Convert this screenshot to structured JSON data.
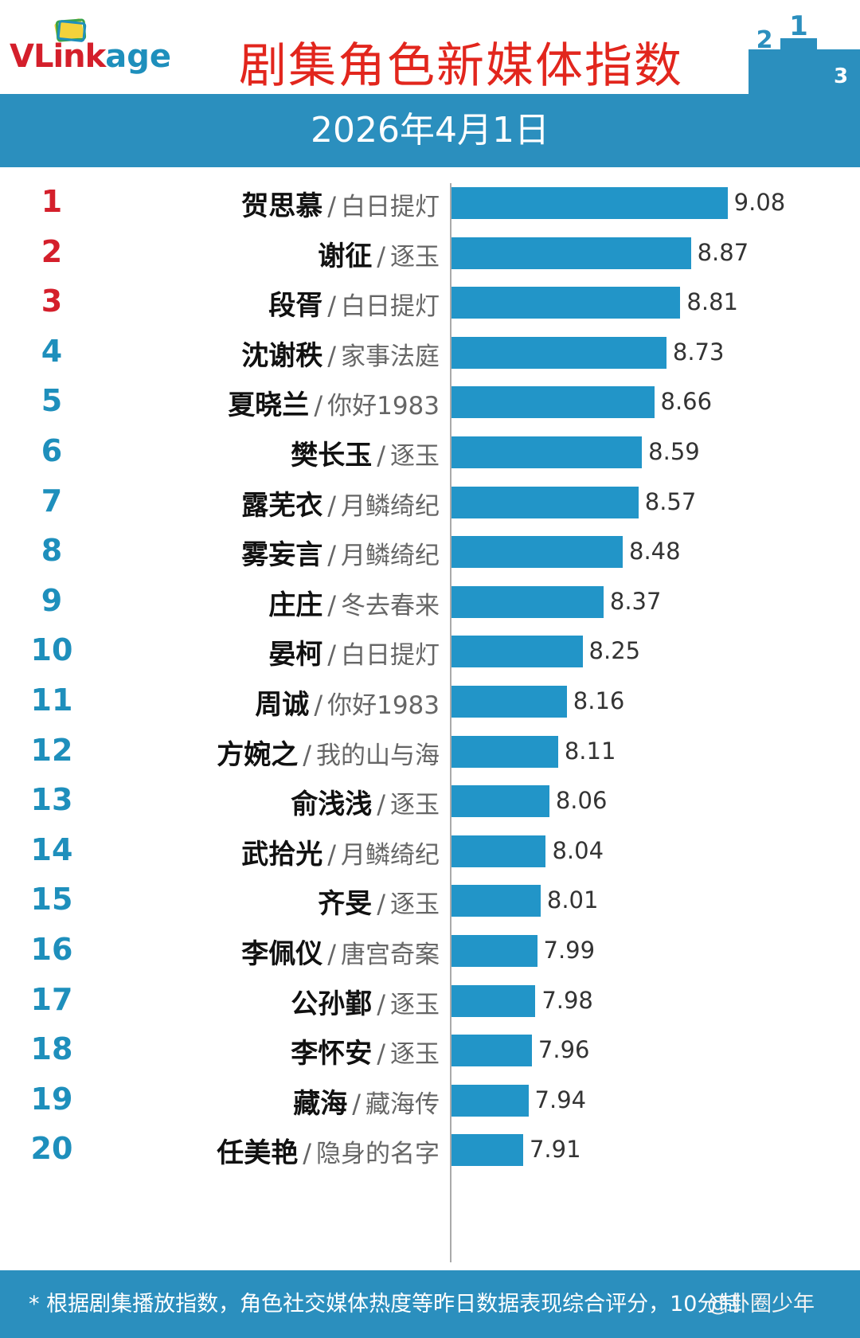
{
  "header": {
    "logo_vl": "VLink",
    "logo_age": "age",
    "title": "剧集角色新媒体指数",
    "podium_1": "1",
    "podium_2": "2",
    "podium_3": "3"
  },
  "date": "2026年4月1日",
  "footer": {
    "note": "* 根据剧集播放指数，角色社交媒体热度等昨日数据表现综合评分，10分制",
    "watermark": "@卦圈少年"
  },
  "colors": {
    "bar": "#2295c8",
    "band": "#2b8fbe",
    "title": "#e2261d",
    "top_rank": "#d41f2b",
    "rank": "#1e8fbc"
  },
  "chart_data": {
    "type": "bar",
    "orientation": "horizontal",
    "title": "剧集角色新媒体指数",
    "xlim": [
      7.5,
      9.2
    ],
    "separator": "/",
    "items": [
      {
        "rank": "1",
        "character": "贺思慕",
        "show": "白日提灯",
        "value": 9.08
      },
      {
        "rank": "2",
        "character": "谢征",
        "show": "逐玉",
        "value": 8.87
      },
      {
        "rank": "3",
        "character": "段胥",
        "show": "白日提灯",
        "value": 8.81
      },
      {
        "rank": "4",
        "character": "沈谢秩",
        "show": "家事法庭",
        "value": 8.73
      },
      {
        "rank": "5",
        "character": "夏晓兰",
        "show": "你好1983",
        "value": 8.66
      },
      {
        "rank": "6",
        "character": "樊长玉",
        "show": "逐玉",
        "value": 8.59
      },
      {
        "rank": "7",
        "character": "露芜衣",
        "show": "月鳞绮纪",
        "value": 8.57
      },
      {
        "rank": "8",
        "character": "雾妄言",
        "show": "月鳞绮纪",
        "value": 8.48
      },
      {
        "rank": "9",
        "character": "庄庄",
        "show": "冬去春来",
        "value": 8.37
      },
      {
        "rank": "10",
        "character": "晏柯",
        "show": "白日提灯",
        "value": 8.25
      },
      {
        "rank": "11",
        "character": "周诚",
        "show": "你好1983",
        "value": 8.16
      },
      {
        "rank": "12",
        "character": "方婉之",
        "show": "我的山与海",
        "value": 8.11
      },
      {
        "rank": "13",
        "character": "俞浅浅",
        "show": "逐玉",
        "value": 8.06
      },
      {
        "rank": "14",
        "character": "武拾光",
        "show": "月鳞绮纪",
        "value": 8.04
      },
      {
        "rank": "15",
        "character": "齐旻",
        "show": "逐玉",
        "value": 8.01
      },
      {
        "rank": "16",
        "character": "李佩仪",
        "show": "唐宫奇案",
        "value": 7.99
      },
      {
        "rank": "17",
        "character": "公孙鄞",
        "show": "逐玉",
        "value": 7.98
      },
      {
        "rank": "18",
        "character": "李怀安",
        "show": "逐玉",
        "value": 7.96
      },
      {
        "rank": "19",
        "character": "藏海",
        "show": "藏海传",
        "value": 7.94
      },
      {
        "rank": "20",
        "character": "任美艳",
        "show": "隐身的名字",
        "value": 7.91
      }
    ]
  }
}
